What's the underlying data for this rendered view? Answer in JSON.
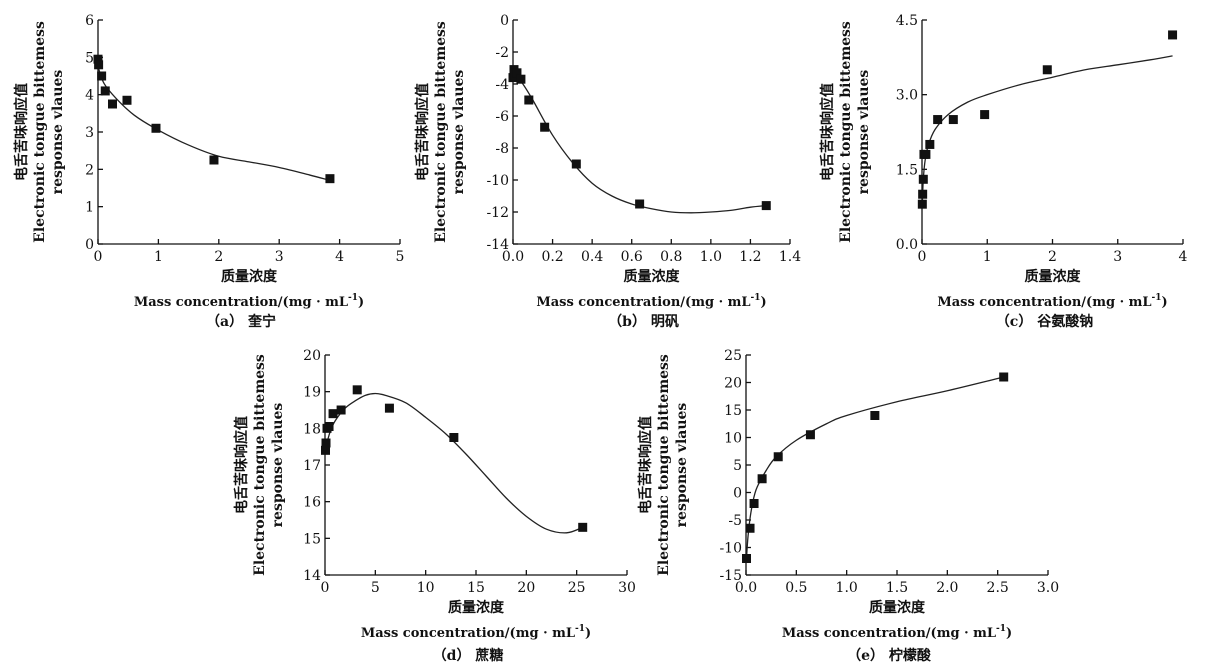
{
  "figure": {
    "xlabel_cn": "质量浓度",
    "xlabel_en": "Mass concentration/(mg · mL",
    "xlabel_en_sup": "-1",
    "xlabel_en_end": ")",
    "ylabel_lines": [
      "电舌苦味响应值",
      "Electronic tongue bittemess",
      "response vlaues"
    ]
  },
  "chart_data": [
    {
      "type": "scatter",
      "panel": "a",
      "caption": "（a） 奎宁",
      "xlim": [
        0,
        5
      ],
      "ylim": [
        0,
        6
      ],
      "xticks": [
        0,
        1,
        2,
        3,
        4,
        5
      ],
      "xtick_labels": [
        "0",
        "1",
        "2",
        "3",
        "4",
        "5"
      ],
      "yticks": [
        0,
        1,
        2,
        3,
        4,
        5,
        6
      ],
      "ytick_labels": [
        "0",
        "1",
        "2",
        "3",
        "4",
        "5",
        "6"
      ],
      "x": [
        0.0,
        0.01,
        0.06,
        0.12,
        0.24,
        0.48,
        0.96,
        1.92,
        3.84
      ],
      "y": [
        4.95,
        4.8,
        4.5,
        4.1,
        3.75,
        3.85,
        3.1,
        2.25,
        1.75
      ],
      "fit": {
        "x": [
          0,
          0.1,
          0.3,
          0.6,
          1.0,
          1.5,
          2.0,
          2.5,
          3.0,
          3.5,
          3.8
        ],
        "y": [
          4.75,
          4.3,
          3.9,
          3.45,
          3.05,
          2.65,
          2.35,
          2.2,
          2.05,
          1.85,
          1.72
        ]
      }
    },
    {
      "type": "scatter",
      "panel": "b",
      "caption": "（b） 明矾",
      "xlim": [
        0,
        1.4
      ],
      "ylim": [
        -14,
        0
      ],
      "xticks": [
        0,
        0.2,
        0.4,
        0.6,
        0.8,
        1.0,
        1.2,
        1.4
      ],
      "xtick_labels": [
        "0.0",
        "0.2",
        "0.4",
        "0.6",
        "0.8",
        "1.0",
        "1.2",
        "1.4"
      ],
      "yticks": [
        0,
        -2,
        -4,
        -6,
        -8,
        -10,
        -12,
        -14
      ],
      "ytick_labels": [
        "0",
        "-2",
        "-4",
        "-6",
        "-8",
        "-10",
        "-12",
        "-14"
      ],
      "x": [
        0.0,
        0.005,
        0.01,
        0.02,
        0.04,
        0.08,
        0.16,
        0.32,
        0.64,
        1.28
      ],
      "y": [
        -3.6,
        -3.1,
        -3.5,
        -3.3,
        -3.7,
        -5.0,
        -6.7,
        -9.0,
        -11.5,
        -11.6
      ],
      "fit": {
        "x": [
          0,
          0.05,
          0.1,
          0.2,
          0.3,
          0.4,
          0.5,
          0.6,
          0.7,
          0.8,
          0.9,
          1.0,
          1.1,
          1.2,
          1.28
        ],
        "y": [
          -3.2,
          -4.0,
          -5.0,
          -7.2,
          -8.9,
          -10.2,
          -11.0,
          -11.5,
          -11.8,
          -12.0,
          -12.05,
          -12.0,
          -11.9,
          -11.7,
          -11.6
        ]
      }
    },
    {
      "type": "scatter",
      "panel": "c",
      "caption": "（c） 谷氨酸钠",
      "xlim": [
        0,
        4
      ],
      "ylim": [
        0,
        4.5
      ],
      "xticks": [
        0,
        1,
        2,
        3,
        4
      ],
      "xtick_labels": [
        "0",
        "1",
        "2",
        "3",
        "4"
      ],
      "yticks": [
        0,
        1.5,
        3.0,
        4.5
      ],
      "ytick_labels": [
        "0.0",
        "1.5",
        "3.0",
        "4.5"
      ],
      "x": [
        0.005,
        0.01,
        0.02,
        0.03,
        0.06,
        0.12,
        0.24,
        0.48,
        0.96,
        1.92,
        3.84
      ],
      "y": [
        0.8,
        1.0,
        1.3,
        1.8,
        1.8,
        2.0,
        2.5,
        2.5,
        2.6,
        3.5,
        4.2
      ],
      "fit": {
        "x": [
          0.005,
          0.02,
          0.05,
          0.1,
          0.2,
          0.4,
          0.7,
          1.0,
          1.5,
          2.0,
          2.5,
          3.0,
          3.5,
          3.84
        ],
        "y": [
          0.8,
          1.3,
          1.7,
          2.0,
          2.3,
          2.6,
          2.85,
          3.0,
          3.2,
          3.35,
          3.5,
          3.6,
          3.7,
          3.78
        ]
      }
    },
    {
      "type": "scatter",
      "panel": "d",
      "caption": "（d） 蔗糖",
      "xlim": [
        0,
        30
      ],
      "ylim": [
        14,
        20
      ],
      "xticks": [
        0,
        5,
        10,
        15,
        20,
        25,
        30
      ],
      "xtick_labels": [
        "0",
        "5",
        "10",
        "15",
        "20",
        "25",
        "30"
      ],
      "yticks": [
        14,
        15,
        16,
        17,
        18,
        19,
        20
      ],
      "ytick_labels": [
        "14",
        "15",
        "16",
        "17",
        "18",
        "19",
        "20"
      ],
      "x": [
        0.05,
        0.1,
        0.2,
        0.4,
        0.8,
        1.6,
        3.2,
        6.4,
        12.8,
        25.6
      ],
      "y": [
        17.4,
        17.6,
        18.0,
        18.05,
        18.4,
        18.5,
        19.05,
        18.55,
        17.75,
        15.3
      ],
      "fit": {
        "x": [
          0,
          0.5,
          1,
          2,
          3,
          4,
          5,
          6,
          8,
          10,
          12,
          14,
          16,
          18,
          20,
          22,
          24,
          25.6
        ],
        "y": [
          17.4,
          17.9,
          18.2,
          18.55,
          18.75,
          18.9,
          18.95,
          18.9,
          18.7,
          18.3,
          17.85,
          17.3,
          16.7,
          16.1,
          15.6,
          15.25,
          15.15,
          15.3
        ]
      }
    },
    {
      "type": "scatter",
      "panel": "e",
      "caption": "（e） 柠檬酸",
      "xlim": [
        0,
        3.0
      ],
      "ylim": [
        -15,
        25
      ],
      "xticks": [
        0,
        0.5,
        1.0,
        1.5,
        2.0,
        2.5,
        3.0
      ],
      "xtick_labels": [
        "0.0",
        "0.5",
        "1.0",
        "1.5",
        "2.0",
        "2.5",
        "3.0"
      ],
      "yticks": [
        -15,
        -10,
        -5,
        0,
        5,
        10,
        15,
        20,
        25
      ],
      "ytick_labels": [
        "-15",
        "-10",
        "-5",
        "0",
        "5",
        "10",
        "15",
        "20",
        "25"
      ],
      "x": [
        0.005,
        0.04,
        0.08,
        0.16,
        0.32,
        0.64,
        1.28,
        2.56
      ],
      "y": [
        -12.0,
        -6.5,
        -2.0,
        2.5,
        6.5,
        10.5,
        14.0,
        21.0
      ],
      "fit": {
        "x": [
          0.005,
          0.02,
          0.05,
          0.1,
          0.2,
          0.3,
          0.5,
          0.8,
          1.0,
          1.5,
          2.0,
          2.56
        ],
        "y": [
          -12.0,
          -8.0,
          -3.5,
          0.5,
          4.0,
          6.5,
          9.5,
          12.5,
          14.0,
          16.5,
          18.5,
          21.0
        ]
      }
    }
  ]
}
